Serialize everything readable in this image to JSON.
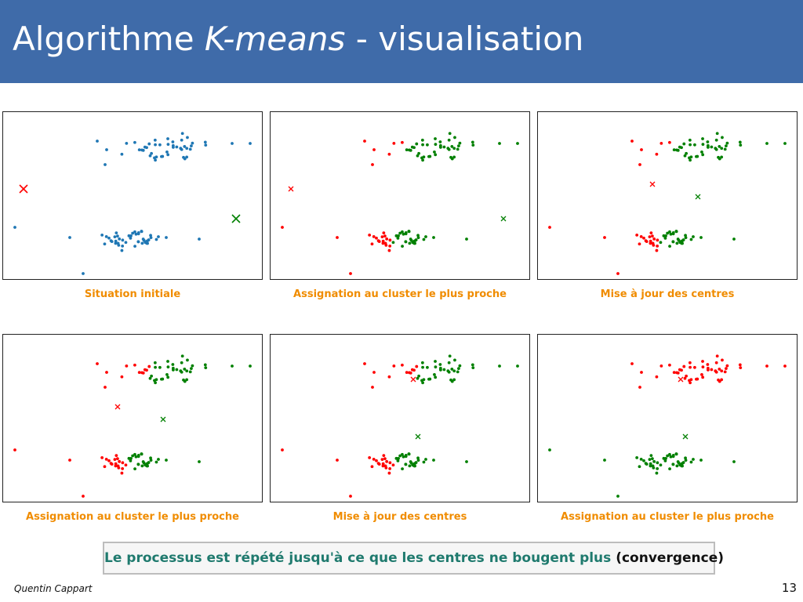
{
  "slide": {
    "title_prefix": "Algorithme ",
    "title_emph": "K-means",
    "title_suffix": " - visualisation",
    "footer_lead": "Le processus est répété jusqu'à ce que les centres ne bougent plus",
    "footer_note": " (convergence)",
    "author": "Quentin Cappart",
    "page_number": "13"
  },
  "colors": {
    "header": "#3f6ba9",
    "caption": "#f08c00",
    "initial_points": "#1f77b4",
    "cluster_red": "#ff0000",
    "cluster_green": "#008000",
    "footer_text": "#1f7a6e"
  },
  "chart_data": [
    {
      "type": "scatter",
      "caption": "Situation initiale",
      "points_color": "blue",
      "centers": [
        "red",
        "green"
      ]
    },
    {
      "type": "scatter",
      "caption": "Assignation au cluster le plus proche",
      "points_color": "red/green",
      "centers": [
        "red",
        "green"
      ]
    },
    {
      "type": "scatter",
      "caption": "Mise à jour des centres",
      "points_color": "red/green",
      "centers": [
        "red",
        "green"
      ]
    },
    {
      "type": "scatter",
      "caption": "Assignation au cluster le plus proche",
      "points_color": "red/green",
      "centers": [
        "red",
        "green"
      ]
    },
    {
      "type": "scatter",
      "caption": "Mise à jour des centres",
      "points_color": "red/green",
      "centers": [
        "red",
        "green"
      ]
    },
    {
      "type": "scatter",
      "caption": "Assignation au cluster le plus proche",
      "points_color": "red/green",
      "centers": [
        "red",
        "green"
      ]
    }
  ]
}
